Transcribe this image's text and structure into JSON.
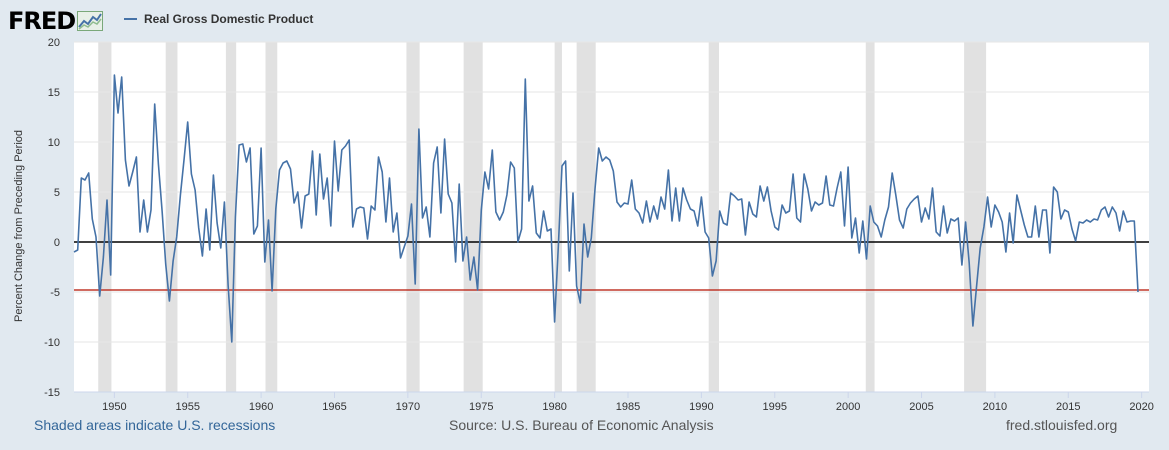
{
  "header": {
    "logo_text": "FRED",
    "legend_label": "Real Gross Domestic Product"
  },
  "footer": {
    "recession_note": "Shaded areas indicate U.S. recessions",
    "source": "Source: U.S. Bureau of Economic Analysis",
    "site": "fred.stlouisfed.org"
  },
  "colors": {
    "line": "#4572a7",
    "recession": "#e1e1e1",
    "plot_bg": "#ffffff",
    "reference_line": "#c0392b",
    "page_bg": "#e1e9f0"
  },
  "chart_data": {
    "type": "line",
    "title": "",
    "xlabel": "",
    "ylabel": "Percent Change from Preceding Period",
    "xlim": [
      1947.25,
      2020.5
    ],
    "ylim": [
      -15,
      20
    ],
    "yticks": [
      20,
      15,
      10,
      5,
      0,
      -5,
      -10,
      -15
    ],
    "xticks": [
      1950,
      1955,
      1960,
      1965,
      1970,
      1975,
      1980,
      1985,
      1990,
      1995,
      2000,
      2005,
      2010,
      2015,
      2020
    ],
    "grid": "horizontal",
    "legend": "top-left",
    "reference_lines": [
      {
        "y": 0,
        "color": "#000000"
      },
      {
        "y": -4.8,
        "color": "#c0392b"
      }
    ],
    "recessions": [
      [
        1948.9,
        1949.8
      ],
      [
        1953.5,
        1954.3
      ],
      [
        1957.6,
        1958.3
      ],
      [
        1960.3,
        1961.1
      ],
      [
        1969.9,
        1970.8
      ],
      [
        1973.8,
        1975.1
      ],
      [
        1980.0,
        1980.5
      ],
      [
        1981.5,
        1982.8
      ],
      [
        1990.5,
        1991.2
      ],
      [
        2001.2,
        2001.8
      ],
      [
        2007.9,
        2009.4
      ]
    ],
    "series": [
      {
        "name": "Real Gross Domestic Product",
        "x0": 1947.25,
        "step": 0.25,
        "values": [
          -1.0,
          -0.8,
          6.4,
          6.2,
          6.9,
          2.3,
          0.5,
          -5.4,
          -1.5,
          4.2,
          -3.3,
          16.7,
          12.9,
          16.5,
          8.2,
          5.6,
          7.0,
          8.5,
          1.0,
          4.2,
          1.0,
          3.2,
          13.8,
          7.8,
          3.1,
          -2.2,
          -5.9,
          -1.9,
          0.5,
          4.7,
          8.3,
          12.0,
          6.8,
          5.2,
          1.4,
          -1.4,
          3.3,
          -0.8,
          6.7,
          1.9,
          -0.6,
          4.0,
          -4.3,
          -10.0,
          2.5,
          9.7,
          9.8,
          8.0,
          9.4,
          0.8,
          1.6,
          9.4,
          -2.0,
          2.2,
          -4.9,
          3.3,
          7.2,
          7.9,
          8.1,
          7.3,
          3.9,
          5.0,
          1.4,
          4.6,
          4.8,
          9.1,
          2.7,
          8.8,
          4.3,
          6.4,
          1.6,
          10.1,
          5.1,
          9.2,
          9.6,
          10.2,
          1.5,
          3.3,
          3.5,
          3.4,
          0.3,
          3.6,
          3.2,
          8.5,
          7.0,
          2.0,
          6.4,
          1.0,
          2.9,
          -1.6,
          -0.5,
          0.6,
          3.8,
          -4.2,
          11.3,
          2.4,
          3.5,
          0.5,
          7.9,
          9.5,
          2.9,
          10.3,
          4.8,
          3.9,
          -2.0,
          5.8,
          -1.9,
          0.5,
          -3.8,
          -1.5,
          -4.8,
          3.2,
          7.0,
          5.3,
          9.2,
          3.0,
          2.2,
          3.0,
          4.7,
          8.0,
          7.4,
          0.0,
          1.3,
          16.3,
          4.1,
          5.6,
          0.9,
          0.4,
          3.1,
          1.1,
          1.3,
          -8.0,
          -0.5,
          7.6,
          8.1,
          -2.9,
          4.9,
          -4.4,
          -6.1,
          1.8,
          -1.5,
          0.4,
          5.3,
          9.4,
          8.1,
          8.5,
          8.2,
          7.1,
          4.0,
          3.5,
          3.9,
          3.8,
          6.2,
          3.3,
          2.9,
          1.9,
          4.1,
          2.0,
          3.6,
          2.3,
          4.5,
          3.3,
          7.2,
          2.1,
          5.4,
          2.1,
          5.4,
          4.2,
          3.3,
          3.1,
          1.6,
          4.5,
          1.0,
          0.4,
          -3.4,
          -1.9,
          3.1,
          1.9,
          1.7,
          4.9,
          4.6,
          4.2,
          4.3,
          0.7,
          4.0,
          2.8,
          2.5,
          5.6,
          4.1,
          5.5,
          3.1,
          1.5,
          1.2,
          3.7,
          2.9,
          3.1,
          6.8,
          2.4,
          2.0,
          6.8,
          5.3,
          3.1,
          4.0,
          3.7,
          3.9,
          6.6,
          3.7,
          3.6,
          5.4,
          7.0,
          1.6,
          7.5,
          0.4,
          2.4,
          -1.1,
          2.1,
          -1.7,
          3.6,
          2.0,
          1.6,
          0.5,
          2.2,
          3.5,
          6.9,
          4.7,
          2.2,
          1.4,
          3.3,
          3.9,
          4.3,
          4.6,
          2.0,
          3.4,
          2.3,
          5.4,
          1.0,
          0.6,
          3.6,
          0.9,
          2.3,
          2.1,
          2.4,
          -2.3,
          2.0,
          -2.1,
          -8.4,
          -4.4,
          -0.6,
          1.5,
          4.5,
          1.5,
          3.7,
          3.0,
          2.0,
          -1.0,
          2.9,
          -0.1,
          4.7,
          3.2,
          1.7,
          0.5,
          0.5,
          3.6,
          0.5,
          3.2,
          3.2,
          -1.1,
          5.5,
          5.0,
          2.3,
          3.2,
          3.0,
          1.3,
          0.1,
          2.0,
          1.9,
          2.2,
          2.0,
          2.3,
          2.2,
          3.2,
          3.5,
          2.5,
          3.5,
          2.9,
          1.1,
          3.1,
          2.0,
          2.1,
          2.1,
          -5.0
        ]
      }
    ]
  }
}
